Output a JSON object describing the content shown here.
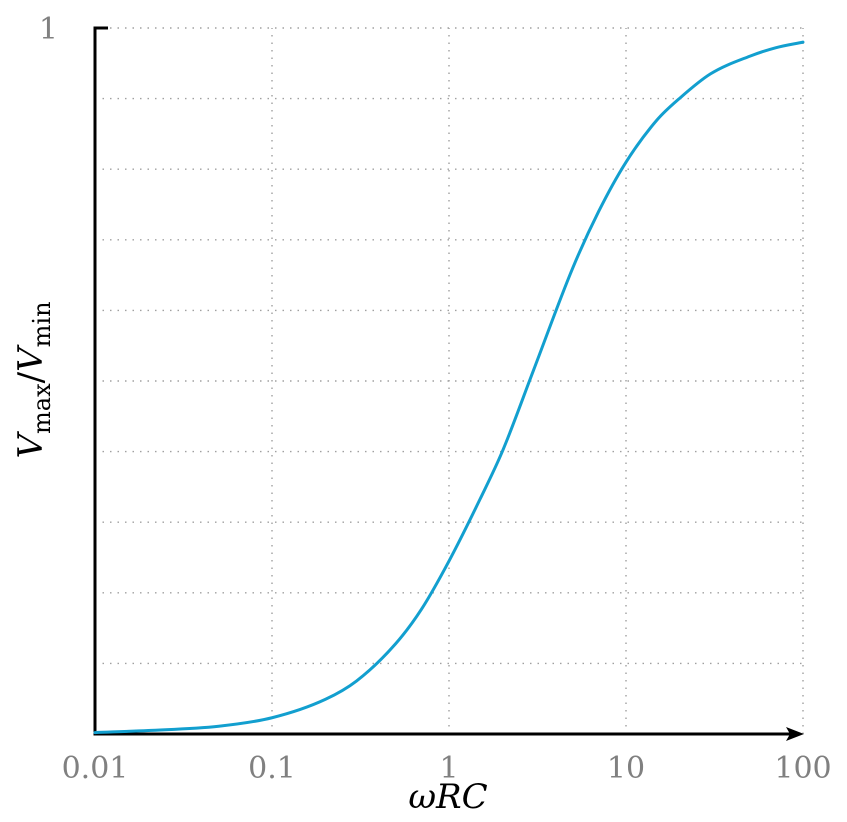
{
  "chart_data": {
    "type": "line",
    "xscale": "log",
    "xlim": [
      0.01,
      100
    ],
    "ylim": [
      0,
      1
    ],
    "xticks": [
      "0.01",
      "0.1",
      "1",
      "10",
      "100"
    ],
    "yticks": [
      "1"
    ],
    "xlabel_parts": [
      "ωRC"
    ],
    "ylabel_parts": [
      "V",
      "max",
      "/",
      "V",
      "min"
    ],
    "grid": true,
    "line_color": "#129fcf",
    "series": [
      {
        "x": [
          0.01,
          0.02,
          0.05,
          0.1,
          0.2,
          0.3,
          0.5,
          0.7,
          1,
          1.5,
          2,
          3,
          5,
          7,
          10,
          15,
          20,
          30,
          50,
          70,
          100
        ],
        "y": [
          0.002,
          0.005,
          0.011,
          0.023,
          0.049,
          0.075,
          0.128,
          0.177,
          0.245,
          0.333,
          0.4,
          0.515,
          0.66,
          0.74,
          0.81,
          0.87,
          0.9,
          0.935,
          0.96,
          0.972,
          0.98
        ]
      }
    ]
  }
}
